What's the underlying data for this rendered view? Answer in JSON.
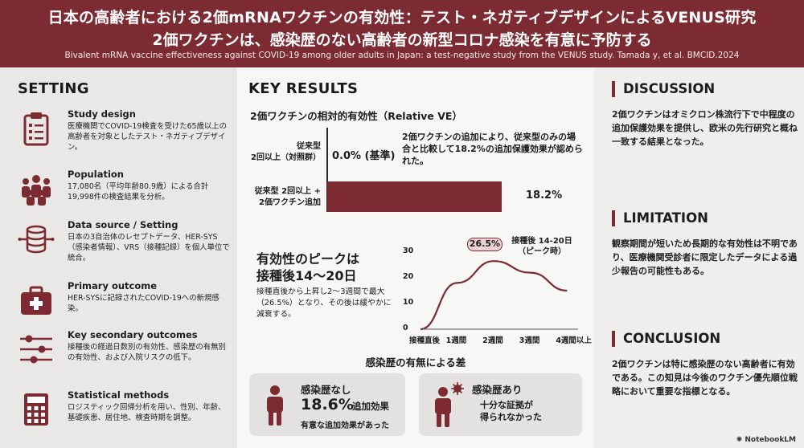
{
  "header": {
    "title_ja_1": "日本の高齢者における2価mRNAワクチンの有効性：テスト・ネガティブデザインによるVENUS研究",
    "title_ja_2": "2価ワクチンは、感染歴のない高齢者の新型コロナ感染を有意に予防する",
    "subtitle_en": "Bivalent mRNA vaccine effectiveness against COVID-19 among older adults in Japan: a test-negative study from the VENUS study. Tamada y, et al. BMCID.2024"
  },
  "setting": {
    "title": "SETTING",
    "items": [
      {
        "label": "Study design",
        "desc": "医療機関でCOVID-19検査を受けた65歳以上の高齢者を対象としたテスト・ネガティブデザイン。",
        "icon": "clipboard-icon"
      },
      {
        "label": "Population",
        "desc": "17,080名（平均年齢80.9歳）による合計19,998件の検査結果を分析。",
        "icon": "people-icon"
      },
      {
        "label": "Data source / Setting",
        "desc": "日本の3自治体のレセプトデータ、HER-SYS（感染者情報）、VRS（接種記録）を個人単位で統合。",
        "icon": "database-icon"
      },
      {
        "label": "Primary outcome",
        "desc": "HER-SYSに記録されたCOVID-19への新規感染。",
        "icon": "medical-kit-icon"
      },
      {
        "label": "Key secondary outcomes",
        "desc": "接種後の経過日数別の有効性、感染歴の有無別の有効性、および入院リスクの低下。",
        "icon": "sliders-icon"
      },
      {
        "label": "Statistical methods",
        "desc": "ロジスティック回帰分析を用い、性別、年齢、基礎疾患、居住地、検査時期を調整。",
        "icon": "calculator-icon"
      }
    ]
  },
  "key_results": {
    "title": "KEY RESULTS",
    "relative_ve_title": "2価ワクチンの相対的有効性（Relative VE）",
    "bar_label_1": "従来型\n2回以上（対照群）",
    "bar_value_1": "0.0% (基準)",
    "bar_note_1": "2価ワクチンの追加により、従来型のみの場合と比較して18.2%の追加保護効果が認められた。",
    "bar_label_2": "従来型 2回以上 +\n2価ワクチン追加",
    "bar_value_2": "18.2%",
    "peak_title": "有効性のピークは\n接種後14〜20日",
    "peak_desc": "接種直後から上昇し2〜3週間で最大（26.5%）となり、その後は緩やかに減衰する。",
    "history_title": "感染歴の有無による差",
    "box1_head": "感染歴なし",
    "box1_value": "18.6%",
    "box1_suffix": "追加効果",
    "box1_note": "有意な追加効果があった",
    "box2_head": "感染歴あり",
    "box2_note": "十分な証拠が\n得られなかった"
  },
  "chart_data": [
    {
      "type": "bar",
      "orientation": "horizontal",
      "title": "2価ワクチンの相対的有効性（Relative VE）",
      "categories": [
        "従来型 2回以上（対照群）",
        "従来型 2回以上 + 2価ワクチン追加"
      ],
      "values": [
        0.0,
        18.2
      ],
      "unit": "%",
      "xlim": [
        0,
        20
      ]
    },
    {
      "type": "line",
      "title": "有効性のピークは接種後14〜20日",
      "categories": [
        "接種直後",
        "1週間",
        "2週間",
        "3週間",
        "4週間以上"
      ],
      "x": [
        0,
        1,
        2,
        3,
        4
      ],
      "y": [
        0,
        18,
        26.5,
        22,
        15
      ],
      "yticks": [
        0,
        10,
        20,
        30
      ],
      "ylim": [
        0,
        30
      ],
      "xlim": [
        0,
        4.3
      ],
      "peak_label": "26.5%",
      "peak_callout": "接種後 14-20日\n（ピーク時）"
    }
  ],
  "discussion": {
    "title": "DISCUSSION",
    "text": "2価ワクチンはオミクロン株流行下で中程度の追加保護効果を提供し、欧米の先行研究と概ね一致する結果となった。"
  },
  "limitation": {
    "title": "LIMITATION",
    "text": "観察期間が短いため長期的な有効性は不明であり、医療機関受診者に限定したデータによる過少報告の可能性もある。"
  },
  "conclusion": {
    "title": "CONCLUSION",
    "text": "2価ワクチンは特に感染歴のない高齢者に有効である。この知見は今後のワクチン優先順位戦略において重要な指標となる。"
  },
  "branding": {
    "logo_text": "NotebookLM"
  },
  "colors": {
    "accent": "#7d2b32",
    "header_bg": "#7d2b32"
  }
}
